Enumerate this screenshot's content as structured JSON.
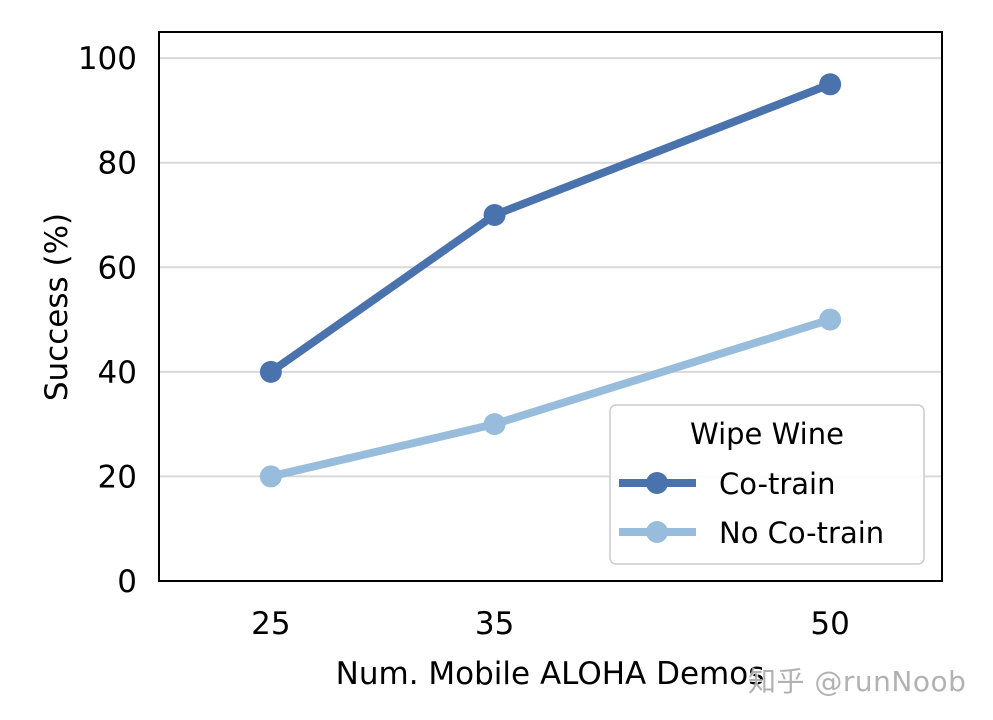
{
  "chart_data": {
    "type": "line",
    "title": "",
    "xlabel": "Num. Mobile ALOHA Demos",
    "ylabel": "Success (%)",
    "x": [
      25,
      35,
      50
    ],
    "x_tick_labels": [
      "25",
      "35",
      "50"
    ],
    "y_ticks": [
      0,
      20,
      40,
      60,
      80,
      100
    ],
    "y_tick_labels": [
      "0",
      "20",
      "40",
      "60",
      "80",
      "100"
    ],
    "xlim": [
      20,
      55
    ],
    "ylim": [
      0,
      105
    ],
    "grid": {
      "y": true,
      "x": false
    },
    "legend": {
      "title": "Wipe Wine",
      "position": "lower right"
    },
    "series": [
      {
        "name": "Co-train",
        "values": [
          40,
          70,
          95
        ],
        "color": "#4a72ac"
      },
      {
        "name": "No Co-train",
        "values": [
          20,
          30,
          50
        ],
        "color": "#98bddc"
      }
    ]
  },
  "colors": {
    "co_train": "#4a72ac",
    "no_co_train": "#98bddc",
    "grid": "#d9d9d9",
    "axes": "#000000",
    "legend_border": "#cccccc"
  },
  "watermark": "知乎 @runNoob"
}
